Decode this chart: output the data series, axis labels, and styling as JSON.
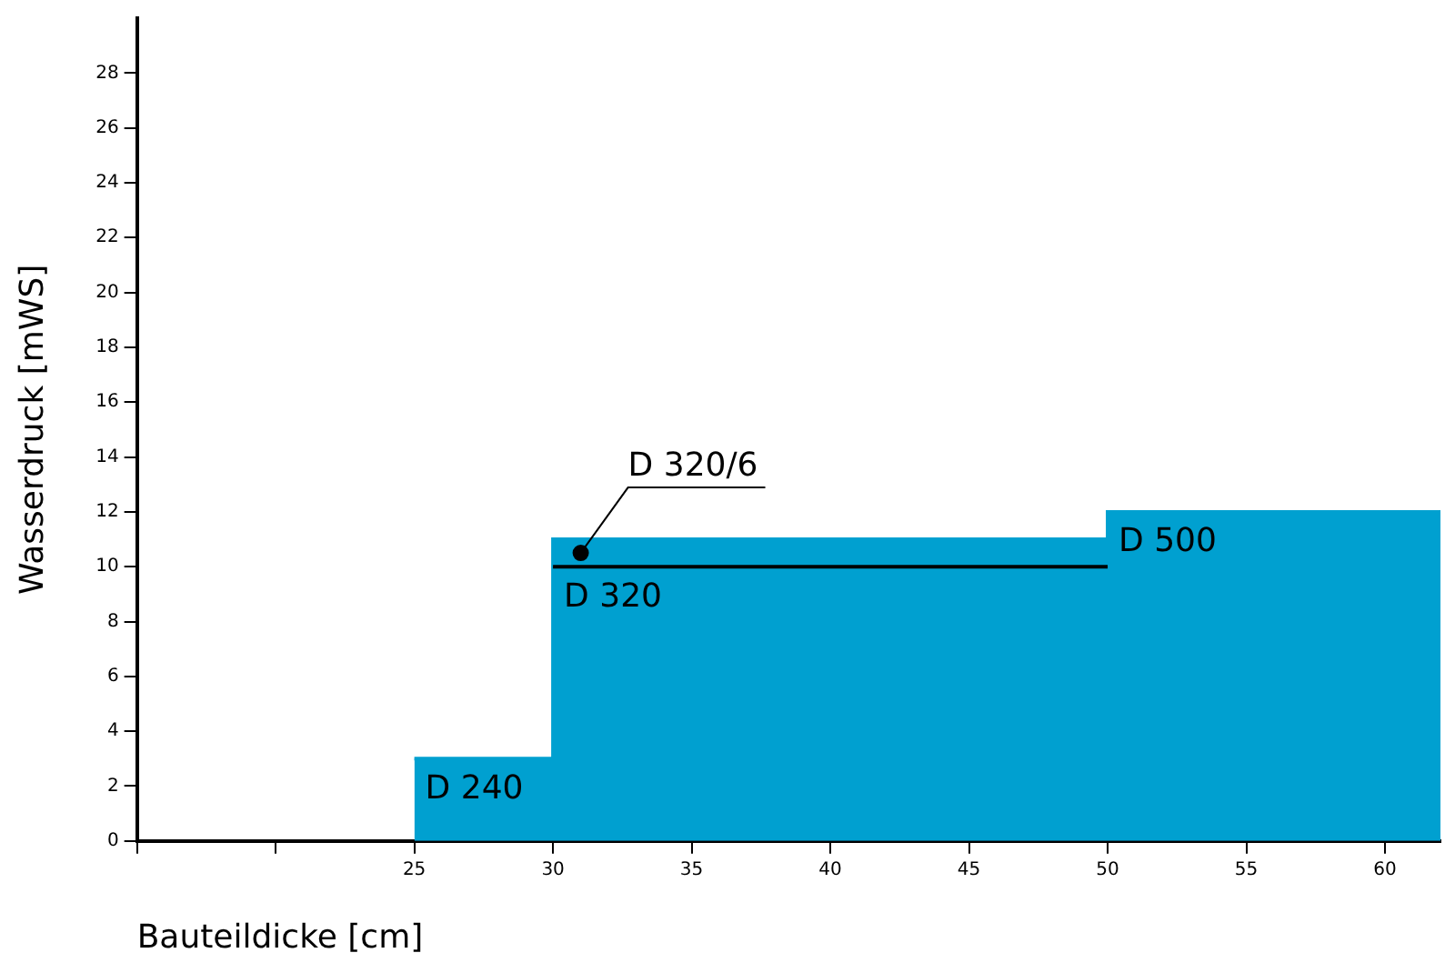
{
  "chart_data": {
    "type": "area",
    "xlabel": "Bauteildicke [cm]",
    "ylabel": "Wasserdruck [mWS]",
    "series": [
      {
        "color": "#00a0d0",
        "x": [
          25,
          30,
          50,
          62
        ],
        "values": [
          3,
          11,
          12,
          12
        ]
      },
      {
        "type": "step",
        "color": "#000000",
        "x": [
          30,
          50
        ],
        "values": [
          10,
          10
        ]
      },
      {
        "type": "scatter",
        "color": "#000000",
        "x": [
          31
        ],
        "values": [
          10.5
        ]
      }
    ],
    "annotations": [
      {
        "text": "D 240",
        "x": 25,
        "y": 3
      },
      {
        "text": "D 320",
        "x": 30,
        "y": 10
      },
      {
        "text": "D 320/6",
        "x": 31,
        "y": 10.5
      },
      {
        "text": "D 500",
        "x": 50,
        "y": 12
      }
    ],
    "xlim": [
      15,
      62
    ],
    "ylim": [
      0,
      30
    ],
    "xticks": [
      {
        "value": 15,
        "label": null
      },
      {
        "value": 20,
        "label": null
      },
      25,
      30,
      35,
      40,
      45,
      50,
      55,
      60
    ],
    "yticks": [
      0,
      2,
      4,
      6,
      8,
      10,
      12,
      14,
      16,
      18,
      20,
      22,
      24,
      26,
      28
    ],
    "grid": false,
    "legend": false
  }
}
